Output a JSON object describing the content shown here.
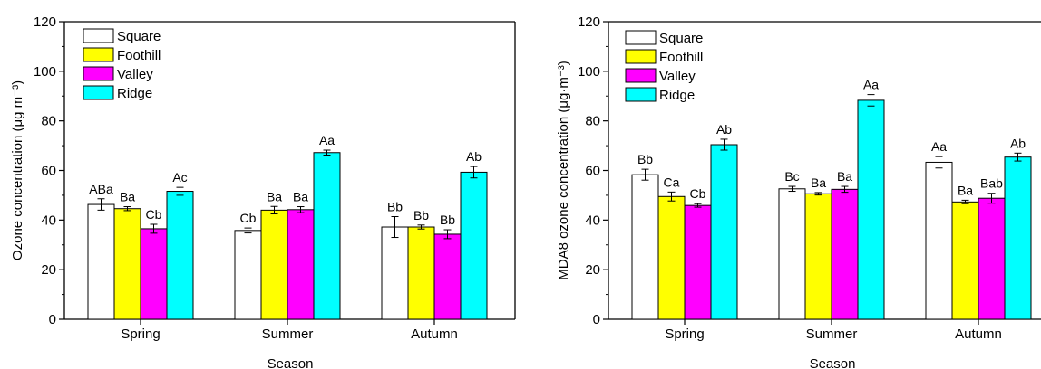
{
  "chart_data": [
    {
      "type": "bar",
      "title": "",
      "xlabel": "Season",
      "ylabel": "Ozone concentration (μg m⁻³)",
      "ylim": [
        0,
        120
      ],
      "yticks": [
        0,
        20,
        40,
        60,
        80,
        100,
        120
      ],
      "categories": [
        "Spring",
        "Summer",
        "Autumn"
      ],
      "legend_position": "top-left",
      "series": [
        {
          "name": "Square",
          "color": "#ffffff",
          "values": [
            46.3,
            35.8,
            37.2
          ],
          "errors": [
            2.3,
            1.0,
            4.2
          ],
          "labels": [
            "ABa",
            "Cb",
            "Bb"
          ]
        },
        {
          "name": "Foothill",
          "color": "#ffff00",
          "values": [
            44.6,
            44.0,
            37.2
          ],
          "errors": [
            0.8,
            1.5,
            0.8
          ],
          "labels": [
            "Ba",
            "Ba",
            "Bb"
          ]
        },
        {
          "name": "Valley",
          "color": "#ff00ff",
          "values": [
            36.5,
            44.2,
            34.3
          ],
          "errors": [
            1.8,
            1.2,
            1.8
          ],
          "labels": [
            "Cb",
            "Ba",
            "Bb"
          ]
        },
        {
          "name": "Ridge",
          "color": "#00ffff",
          "values": [
            51.6,
            67.2,
            59.3
          ],
          "errors": [
            1.6,
            1.0,
            2.3
          ],
          "labels": [
            "Ac",
            "Aa",
            "Ab"
          ]
        }
      ]
    },
    {
      "type": "bar",
      "title": "",
      "xlabel": "Season",
      "ylabel": "MDA8 ozone concentration (μg·m⁻³)",
      "ylim": [
        0,
        120
      ],
      "yticks": [
        0,
        20,
        40,
        60,
        80,
        100,
        120
      ],
      "categories": [
        "Spring",
        "Summer",
        "Autumn"
      ],
      "legend_position": "top-left",
      "series": [
        {
          "name": "Square",
          "color": "#ffffff",
          "values": [
            58.3,
            52.6,
            63.3
          ],
          "errors": [
            2.2,
            1.0,
            2.3
          ],
          "labels": [
            "Bb",
            "Bc",
            "Aa"
          ]
        },
        {
          "name": "Foothill",
          "color": "#ffff00",
          "values": [
            49.5,
            50.6,
            47.3
          ],
          "errors": [
            1.8,
            0.5,
            0.7
          ],
          "labels": [
            "Ca",
            "Ba",
            "Ba"
          ]
        },
        {
          "name": "Valley",
          "color": "#ff00ff",
          "values": [
            45.9,
            52.4,
            48.8
          ],
          "errors": [
            0.7,
            1.2,
            2.0
          ],
          "labels": [
            "Cb",
            "Ba",
            "Bab"
          ]
        },
        {
          "name": "Ridge",
          "color": "#00ffff",
          "values": [
            70.4,
            88.3,
            65.4
          ],
          "errors": [
            2.2,
            2.3,
            1.6
          ],
          "labels": [
            "Ab",
            "Aa",
            "Ab"
          ]
        }
      ]
    }
  ]
}
